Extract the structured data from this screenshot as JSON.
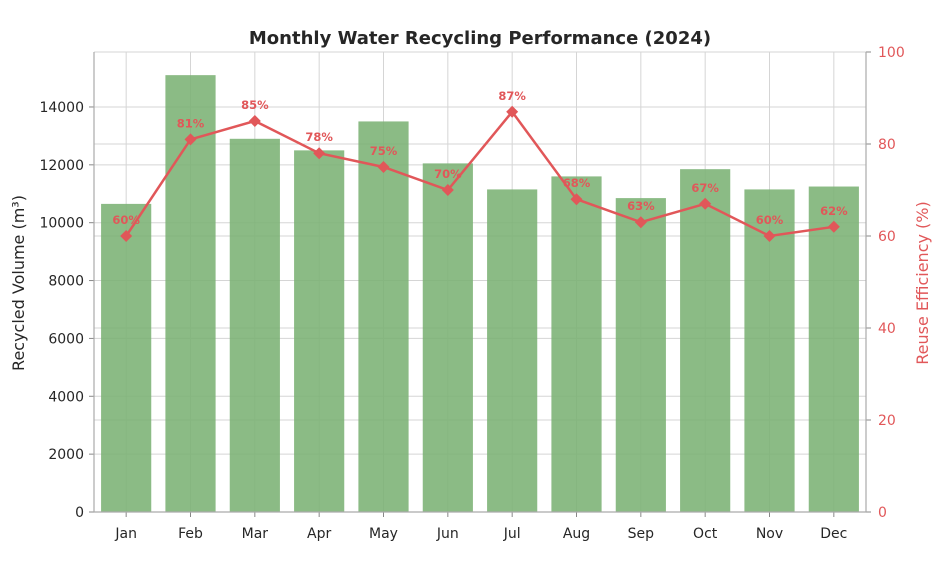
{
  "chart_data": {
    "type": "bar+line",
    "title": "Monthly Water Recycling Performance (2024)",
    "categories": [
      "Jan",
      "Feb",
      "Mar",
      "Apr",
      "May",
      "Jun",
      "Jul",
      "Aug",
      "Sep",
      "Oct",
      "Nov",
      "Dec"
    ],
    "bar_series": {
      "name": "Recycled Volume",
      "values": [
        10650,
        15100,
        12900,
        12500,
        13500,
        12050,
        11150,
        11600,
        10850,
        11850,
        11150,
        11250
      ],
      "color": "#7bb274",
      "ylabel": "Recycled Volume (m³)",
      "ylim": [
        0,
        15900
      ],
      "yticks": [
        0,
        2000,
        4000,
        6000,
        8000,
        10000,
        12000,
        14000
      ]
    },
    "line_series": {
      "name": "Reuse Efficiency",
      "values": [
        60,
        81,
        85,
        78,
        75,
        70,
        87,
        68,
        63,
        67,
        60,
        62
      ],
      "labels": [
        "60%",
        "81%",
        "85%",
        "78%",
        "75%",
        "70%",
        "87%",
        "68%",
        "63%",
        "67%",
        "60%",
        "62%"
      ],
      "color": "#e15759",
      "ylabel": "Reuse Efficiency (%)",
      "ylim": [
        0,
        100
      ],
      "yticks": [
        0,
        20,
        40,
        60,
        80,
        100
      ]
    },
    "grid": true
  }
}
